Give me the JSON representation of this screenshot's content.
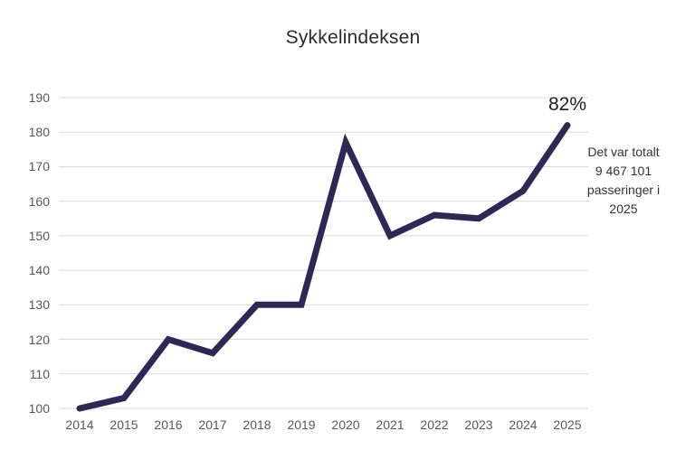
{
  "chart_data": {
    "type": "line",
    "title": "Sykkelindeksen",
    "x": [
      "2014",
      "2015",
      "2016",
      "2017",
      "2018",
      "2019",
      "2020",
      "2021",
      "2022",
      "2023",
      "2024",
      "2025"
    ],
    "series": [
      {
        "name": "Sykkelindeksen",
        "values": [
          100,
          103,
          120,
          116,
          130,
          130,
          177,
          150,
          156,
          155,
          163,
          182
        ]
      }
    ],
    "ylim": [
      100,
      190
    ],
    "yticks": [
      100,
      110,
      120,
      130,
      140,
      150,
      160,
      170,
      180,
      190
    ],
    "grid": "horizontal",
    "legend": "none",
    "colors": {
      "line": "#2d2855",
      "gridline": "#d9d9d9",
      "tick_text": "#595959",
      "title_text": "#2b2b2b",
      "annotation_text": "#1f1f1f"
    },
    "annotations": {
      "percent_label": "82%",
      "note": "Det var totalt\n9 467 101\npasseringer i\n2025"
    }
  }
}
